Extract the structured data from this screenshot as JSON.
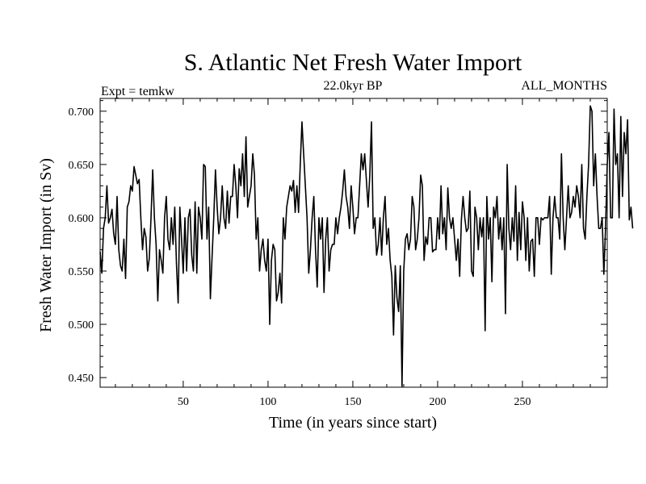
{
  "chart_data": {
    "type": "line",
    "title": "S. Atlantic Net Fresh Water Import",
    "subtitle_left": "Expt = temkw",
    "subtitle_center": "22.0kyr BP",
    "subtitle_right": "ALL_MONTHS",
    "xlabel": "Time (in years since start)",
    "ylabel": "Fresh Water Import (in Sv)",
    "xlim": [
      1,
      300
    ],
    "ylim": [
      0.441,
      0.712
    ],
    "x_ticks": [
      50,
      100,
      150,
      200,
      250
    ],
    "x_tick_labels": [
      "50",
      "100",
      "150",
      "200",
      "250"
    ],
    "y_ticks": [
      0.45,
      0.5,
      0.55,
      0.6,
      0.65,
      0.7
    ],
    "y_tick_labels": [
      "0.450",
      "0.500",
      "0.550",
      "0.600",
      "0.650",
      "0.700"
    ],
    "line_color": "#000000",
    "series": [
      {
        "name": "Fresh Water Import",
        "values": [
          0.568,
          0.548,
          0.59,
          0.6,
          0.63,
          0.595,
          0.6,
          0.608,
          0.585,
          0.575,
          0.62,
          0.57,
          0.555,
          0.55,
          0.58,
          0.543,
          0.61,
          0.615,
          0.63,
          0.625,
          0.648,
          0.64,
          0.632,
          0.636,
          0.6,
          0.57,
          0.59,
          0.582,
          0.55,
          0.562,
          0.6,
          0.645,
          0.6,
          0.575,
          0.522,
          0.57,
          0.56,
          0.548,
          0.6,
          0.62,
          0.58,
          0.57,
          0.6,
          0.575,
          0.61,
          0.557,
          0.52,
          0.61,
          0.58,
          0.548,
          0.6,
          0.55,
          0.6,
          0.608,
          0.565,
          0.55,
          0.615,
          0.548,
          0.61,
          0.6,
          0.58,
          0.65,
          0.648,
          0.58,
          0.61,
          0.524,
          0.563,
          0.6,
          0.645,
          0.61,
          0.585,
          0.6,
          0.63,
          0.6,
          0.59,
          0.625,
          0.595,
          0.62,
          0.62,
          0.65,
          0.63,
          0.6,
          0.646,
          0.63,
          0.66,
          0.62,
          0.676,
          0.61,
          0.62,
          0.63,
          0.66,
          0.64,
          0.58,
          0.6,
          0.55,
          0.57,
          0.58,
          0.56,
          0.55,
          0.58,
          0.5,
          0.56,
          0.575,
          0.57,
          0.522,
          0.53,
          0.548,
          0.52,
          0.6,
          0.58,
          0.61,
          0.62,
          0.63,
          0.625,
          0.635,
          0.605,
          0.63,
          0.605,
          0.65,
          0.69,
          0.66,
          0.63,
          0.6,
          0.548,
          0.57,
          0.6,
          0.62,
          0.57,
          0.535,
          0.6,
          0.58,
          0.6,
          0.53,
          0.58,
          0.6,
          0.55,
          0.57,
          0.575,
          0.575,
          0.6,
          0.585,
          0.6,
          0.61,
          0.625,
          0.645,
          0.62,
          0.61,
          0.59,
          0.63,
          0.61,
          0.585,
          0.6,
          0.6,
          0.63,
          0.66,
          0.645,
          0.66,
          0.635,
          0.61,
          0.64,
          0.69,
          0.59,
          0.6,
          0.565,
          0.575,
          0.6,
          0.565,
          0.6,
          0.62,
          0.575,
          0.59,
          0.56,
          0.545,
          0.49,
          0.555,
          0.525,
          0.512,
          0.555,
          0.442,
          0.55,
          0.58,
          0.585,
          0.57,
          0.58,
          0.62,
          0.61,
          0.57,
          0.58,
          0.6,
          0.64,
          0.63,
          0.56,
          0.582,
          0.575,
          0.6,
          0.6,
          0.568,
          0.57,
          0.57,
          0.6,
          0.58,
          0.63,
          0.585,
          0.6,
          0.57,
          0.628,
          0.6,
          0.59,
          0.6,
          0.58,
          0.56,
          0.58,
          0.545,
          0.598,
          0.62,
          0.6,
          0.587,
          0.59,
          0.625,
          0.55,
          0.545,
          0.61,
          0.6,
          0.57,
          0.6,
          0.582,
          0.6,
          0.494,
          0.62,
          0.58,
          0.6,
          0.54,
          0.61,
          0.6,
          0.62,
          0.58,
          0.6,
          0.57,
          0.6,
          0.51,
          0.65,
          0.59,
          0.57,
          0.6,
          0.578,
          0.63,
          0.56,
          0.605,
          0.57,
          0.615,
          0.6,
          0.56,
          0.6,
          0.55,
          0.578,
          0.58,
          0.545,
          0.6,
          0.6,
          0.575,
          0.6,
          0.598,
          0.6,
          0.6,
          0.6,
          0.62,
          0.547,
          0.6,
          0.62,
          0.6,
          0.6,
          0.58,
          0.66,
          0.6,
          0.57,
          0.6,
          0.63,
          0.6,
          0.605,
          0.62,
          0.61,
          0.63,
          0.62,
          0.6,
          0.65,
          0.59,
          0.58,
          0.62,
          0.65,
          0.705,
          0.7,
          0.63,
          0.66,
          0.62,
          0.59,
          0.59,
          0.6,
          0.547,
          0.59,
          0.65,
          0.68,
          0.6,
          0.6,
          0.702,
          0.65,
          0.66,
          0.6,
          0.695,
          0.62,
          0.68,
          0.66,
          0.692,
          0.598,
          0.61,
          0.59
        ]
      }
    ]
  }
}
